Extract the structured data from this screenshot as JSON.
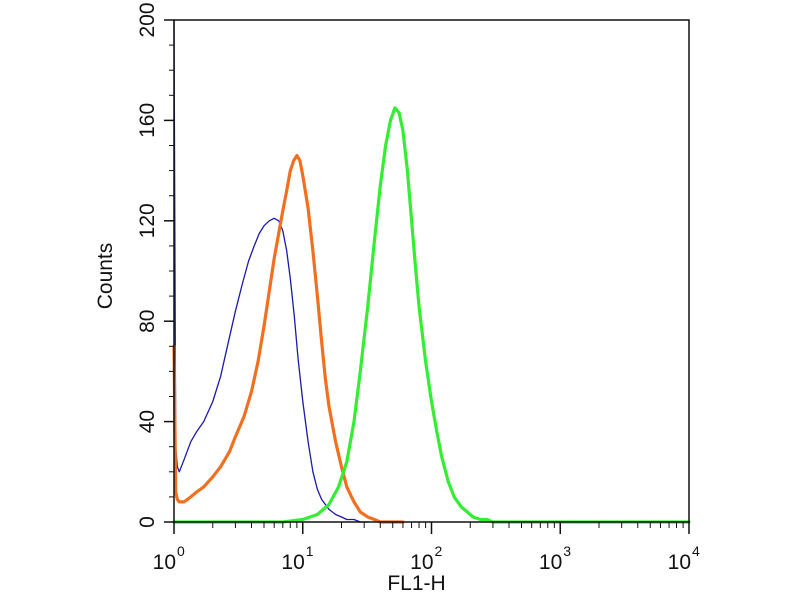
{
  "chart_data": {
    "type": "line",
    "title": "",
    "xlabel": "FL1-H",
    "ylabel": "Counts",
    "x_scale": "log",
    "xlim": [
      1,
      10000
    ],
    "ylim": [
      0,
      200
    ],
    "grid": false,
    "legend": "none",
    "x_ticks": [
      {
        "value": 1,
        "base": "10",
        "exp": "0"
      },
      {
        "value": 10,
        "base": "10",
        "exp": "1"
      },
      {
        "value": 100,
        "base": "10",
        "exp": "2"
      },
      {
        "value": 1000,
        "base": "10",
        "exp": "3"
      },
      {
        "value": 10000,
        "base": "10",
        "exp": "4"
      }
    ],
    "y_ticks": [
      {
        "value": 0,
        "label": "0"
      },
      {
        "value": 40,
        "label": "40"
      },
      {
        "value": 80,
        "label": "80"
      },
      {
        "value": 120,
        "label": "120"
      },
      {
        "value": 160,
        "label": "160"
      },
      {
        "value": 200,
        "label": "200"
      }
    ],
    "series": [
      {
        "color": "#1a1aa6",
        "line_width": 1.3,
        "x": [
          1,
          1.03,
          1.06,
          1.1,
          1.2,
          1.35,
          1.5,
          1.7,
          2,
          2.3,
          2.6,
          3,
          3.4,
          3.8,
          4.2,
          4.6,
          5,
          5.5,
          6,
          6.5,
          7,
          7.5,
          8,
          8.6,
          9.2,
          10,
          11,
          12,
          13,
          14,
          16,
          18,
          20,
          22,
          25,
          28,
          32
        ],
        "y": [
          200,
          30,
          22,
          20,
          25,
          32,
          36,
          40,
          48,
          58,
          70,
          84,
          95,
          104,
          110,
          115,
          118,
          120,
          121,
          120,
          116,
          108,
          97,
          82,
          65,
          48,
          32,
          20,
          13,
          9,
          5,
          3,
          2,
          1,
          1,
          0,
          0
        ]
      },
      {
        "color": "#f07020",
        "line_width": 3.2,
        "x": [
          1,
          1.03,
          1.06,
          1.1,
          1.2,
          1.35,
          1.5,
          1.7,
          2,
          2.3,
          2.7,
          3,
          3.5,
          4,
          4.5,
          5,
          5.5,
          6,
          6.5,
          7,
          7.5,
          8,
          8.5,
          9,
          9.5,
          10,
          11,
          12,
          13,
          14,
          15,
          16,
          18,
          20,
          22,
          25,
          28,
          32,
          36,
          40,
          50,
          60
        ],
        "y": [
          70,
          12,
          9,
          8,
          8,
          10,
          12,
          14,
          18,
          22,
          28,
          34,
          42,
          52,
          64,
          78,
          92,
          105,
          115,
          124,
          132,
          140,
          144,
          146,
          144,
          138,
          125,
          108,
          90,
          72,
          57,
          46,
          32,
          22,
          14,
          8,
          4,
          2,
          1,
          0,
          0,
          0
        ]
      },
      {
        "color": "#33ee33",
        "line_width": 3.2,
        "x": [
          1,
          2,
          4,
          7,
          10,
          13,
          16,
          19,
          22,
          25,
          28,
          32,
          36,
          40,
          44,
          48,
          52,
          56,
          60,
          65,
          70,
          75,
          80,
          90,
          100,
          110,
          120,
          135,
          150,
          170,
          190,
          210,
          240,
          270,
          300,
          350,
          400,
          500,
          1000,
          5000,
          10000
        ],
        "y": [
          0,
          0,
          0,
          0,
          1,
          3,
          7,
          14,
          24,
          40,
          60,
          86,
          112,
          134,
          150,
          160,
          165,
          163,
          156,
          140,
          120,
          102,
          86,
          64,
          48,
          36,
          26,
          16,
          10,
          6,
          4,
          2,
          1,
          1,
          0,
          0,
          0,
          0,
          0,
          0,
          0
        ]
      }
    ]
  }
}
